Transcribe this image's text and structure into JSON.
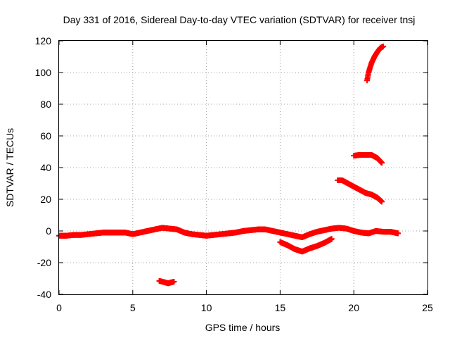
{
  "chart_data": {
    "type": "scatter",
    "title": "Day 331 of 2016, Sidereal Day-to-day VTEC variation (SDTVAR) for receiver tnsj",
    "xlabel": "GPS time / hours",
    "ylabel": "SDTVAR / TECUs",
    "xlim": [
      0,
      25
    ],
    "ylim": [
      -40,
      120
    ],
    "xticks": [
      0,
      5,
      10,
      15,
      20,
      25
    ],
    "yticks": [
      -40,
      -20,
      0,
      20,
      40,
      60,
      80,
      100,
      120
    ],
    "grid": true,
    "legend": "none",
    "marker": "plus",
    "color": "#ff0000",
    "segments": [
      {
        "x": [
          0.0,
          0.5,
          1.0,
          1.5,
          2.0,
          2.5,
          3.0,
          3.5,
          4.0,
          4.5,
          5.0,
          5.5,
          6.0,
          6.5,
          7.0,
          7.5,
          8.0,
          8.5,
          9.0,
          9.5,
          10.0,
          10.5,
          11.0,
          11.5,
          12.0,
          12.5,
          13.0,
          13.5,
          14.0,
          14.5,
          15.0,
          15.5,
          16.0,
          16.5,
          17.0,
          17.5,
          18.0,
          18.5,
          19.0,
          19.5,
          20.0,
          20.5,
          21.0,
          21.5,
          22.0,
          22.5,
          23.0
        ],
        "y": [
          -3,
          -3,
          -2.5,
          -2.5,
          -2,
          -1.5,
          -1,
          -1,
          -1,
          -1,
          -2,
          -1,
          0,
          1,
          2,
          1.5,
          1,
          -1,
          -2,
          -2.5,
          -3,
          -2.5,
          -2,
          -1.5,
          -1,
          0,
          0.5,
          1,
          1,
          0,
          -1,
          -2,
          -3,
          -4,
          -2,
          -0.5,
          0.5,
          1.5,
          2,
          1.5,
          0,
          -1,
          -1.5,
          0,
          -0.5,
          -0.5,
          -1.5
        ]
      },
      {
        "x": [
          6.8,
          7.0,
          7.2,
          7.4,
          7.6,
          7.8
        ],
        "y": [
          -31.5,
          -32,
          -32.5,
          -33,
          -32.5,
          -32
        ]
      },
      {
        "x": [
          15.0,
          15.5,
          16.0,
          16.5,
          17.0,
          17.5,
          18.0,
          18.5
        ],
        "y": [
          -7,
          -9,
          -11.5,
          -13,
          -11,
          -9.5,
          -7.5,
          -5
        ]
      },
      {
        "x": [
          18.9,
          19.2,
          19.6,
          20.0,
          20.4,
          20.8,
          21.2,
          21.6,
          21.9
        ],
        "y": [
          32,
          32,
          30,
          28,
          26,
          24,
          23,
          21,
          18.5
        ]
      },
      {
        "x": [
          20.0,
          20.4,
          20.8,
          21.2,
          21.6,
          21.9
        ],
        "y": [
          47.5,
          48,
          48,
          48,
          46,
          43
        ]
      },
      {
        "x": [
          20.9,
          21.0,
          21.2,
          21.4,
          21.6,
          21.8,
          22.0
        ],
        "y": [
          95,
          100,
          106,
          110,
          113,
          115.5,
          116.5
        ]
      }
    ]
  }
}
